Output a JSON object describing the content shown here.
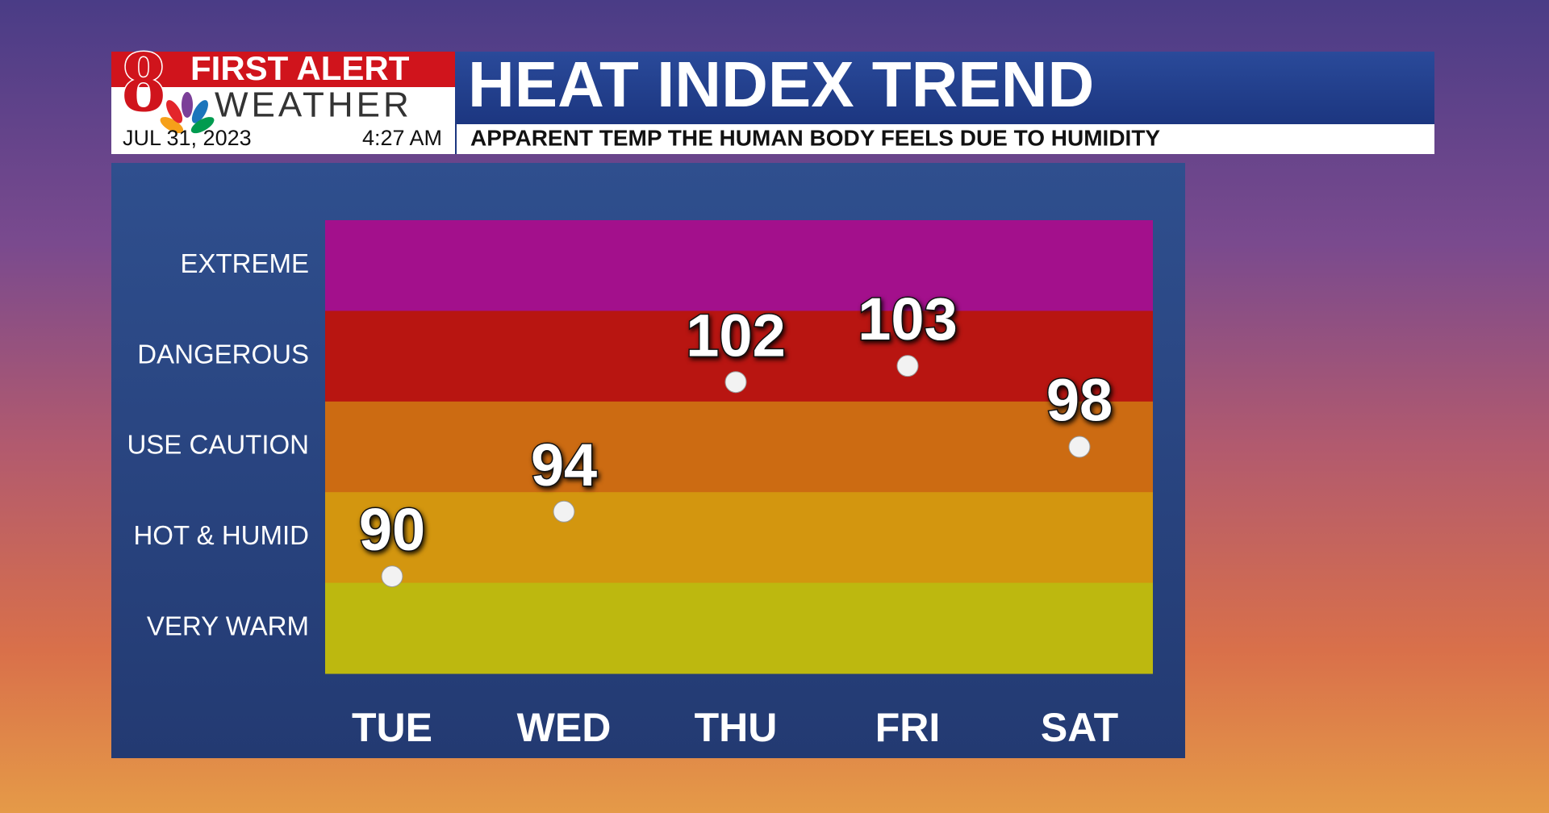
{
  "header": {
    "logo": "8",
    "brand_top": "FIRST ALERT",
    "brand_bottom": "WEATHER",
    "date": "JUL 31, 2023",
    "time": "4:27 AM"
  },
  "chart_data": {
    "type": "dot",
    "title": "HEAT INDEX TREND",
    "subtitle": "APPARENT TEMP THE HUMAN BODY FEELS DUE TO HUMIDITY",
    "categories": [
      "TUE",
      "WED",
      "THU",
      "FRI",
      "SAT"
    ],
    "values": [
      90,
      94,
      102,
      103,
      98
    ],
    "ylim": [
      84,
      112
    ],
    "color": "#f2f2f2",
    "bands": [
      {
        "label": "EXTREME",
        "color": "#a3108c"
      },
      {
        "label": "DANGEROUS",
        "color": "#b81511"
      },
      {
        "label": "USE CAUTION",
        "color": "#cc6b12"
      },
      {
        "label": "HOT & HUMID",
        "color": "#d3960f"
      },
      {
        "label": "VERY WARM",
        "color": "#bdb80f"
      }
    ]
  }
}
